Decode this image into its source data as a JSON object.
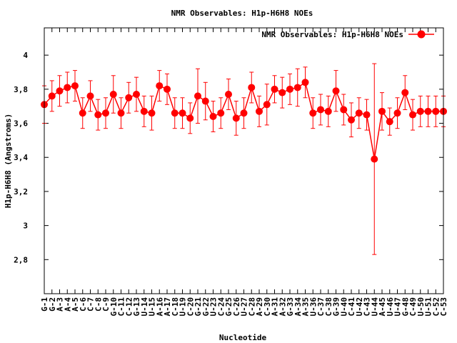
{
  "chart_data": {
    "type": "line",
    "title": "NMR Observables: H1p-H6H8 NOEs",
    "xlabel": "Nucleotide",
    "ylabel": "H1p-H6H8 (Angstroms)",
    "ylim": [
      2.6,
      4.16
    ],
    "yticks": [
      2.8,
      3,
      3.2,
      3.4,
      3.6,
      3.8,
      4
    ],
    "ytick_labels": [
      "2,8",
      "3",
      "3,2",
      "3,4",
      "3,6",
      "3,8",
      "4"
    ],
    "grid": false,
    "legend_position": "top-right",
    "colors": {
      "series": "#ff0000",
      "axes": "#000000"
    },
    "categories": [
      "G-1",
      "G-2",
      "A-3",
      "A-4",
      "A-5",
      "C-6",
      "C-7",
      "C-8",
      "C-9",
      "G-10",
      "C-11",
      "C-12",
      "G-13",
      "U-14",
      "U-15",
      "A-16",
      "A-17",
      "C-18",
      "U-19",
      "C-20",
      "G-21",
      "G-22",
      "U-23",
      "C-24",
      "G-25",
      "C-26",
      "U-27",
      "C-28",
      "A-29",
      "C-30",
      "A-31",
      "A-32",
      "G-33",
      "A-34",
      "A-35",
      "U-36",
      "C-37",
      "C-38",
      "G-39",
      "U-40",
      "C-41",
      "U-42",
      "C-43",
      "U-44",
      "A-45",
      "U-46",
      "U-47",
      "G-48",
      "C-49",
      "U-50",
      "U-51",
      "C-52",
      "C-53"
    ],
    "series": [
      {
        "name": "NMR Observables: H1p-H6H8 NOEs",
        "values": [
          3.71,
          3.76,
          3.79,
          3.81,
          3.82,
          3.66,
          3.76,
          3.65,
          3.66,
          3.77,
          3.66,
          3.75,
          3.77,
          3.67,
          3.66,
          3.82,
          3.8,
          3.66,
          3.66,
          3.63,
          3.76,
          3.73,
          3.64,
          3.66,
          3.77,
          3.63,
          3.66,
          3.81,
          3.67,
          3.71,
          3.8,
          3.78,
          3.8,
          3.81,
          3.84,
          3.66,
          3.68,
          3.67,
          3.79,
          3.68,
          3.62,
          3.66,
          3.65,
          3.39,
          3.67,
          3.61,
          3.66,
          3.78,
          3.65,
          3.67,
          3.67,
          3.67,
          3.67
        ],
        "errors": [
          0.11,
          0.09,
          0.09,
          0.09,
          0.09,
          0.09,
          0.09,
          0.09,
          0.09,
          0.11,
          0.09,
          0.09,
          0.1,
          0.09,
          0.1,
          0.09,
          0.09,
          0.09,
          0.09,
          0.09,
          0.16,
          0.11,
          0.09,
          0.09,
          0.09,
          0.1,
          0.09,
          0.09,
          0.09,
          0.12,
          0.08,
          0.09,
          0.09,
          0.11,
          0.09,
          0.09,
          0.09,
          0.09,
          0.12,
          0.09,
          0.1,
          0.09,
          0.09,
          0.56,
          0.11,
          0.08,
          0.09,
          0.1,
          0.09,
          0.09,
          0.09,
          0.09,
          0.09
        ]
      }
    ]
  }
}
